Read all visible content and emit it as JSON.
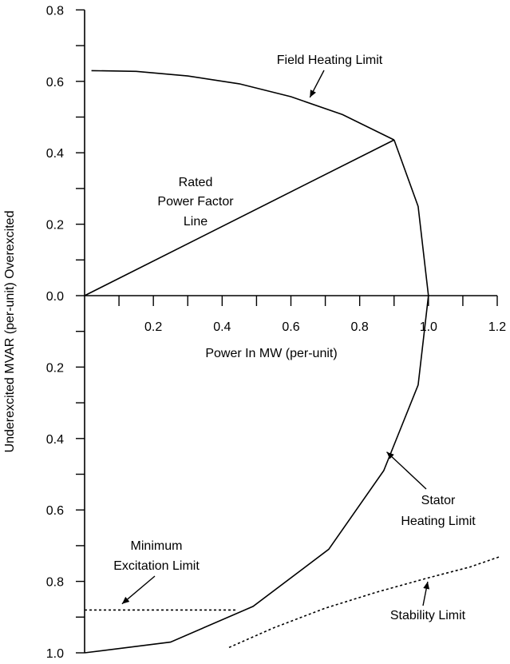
{
  "chart_data": {
    "type": "line",
    "title": "",
    "xlabel": "Power In MW (per-unit)",
    "ylabel": "Underexcited MVAR (per-unit) Overexcited",
    "xlim": [
      0,
      1.2
    ],
    "ylim": [
      -1.0,
      0.8
    ],
    "x_ticks": [
      0.2,
      0.4,
      0.6,
      0.8,
      1.0,
      1.2
    ],
    "x_tick_labels": [
      "0.2",
      "0.4",
      "0.6",
      "0.8",
      "1.0",
      "1.2"
    ],
    "y_ticks": [
      0.8,
      0.6,
      0.4,
      0.2,
      0.0,
      -0.2,
      -0.4,
      -0.6,
      -0.8,
      -1.0
    ],
    "y_tick_labels": [
      "0.8",
      "0.6",
      "0.4",
      "0.2",
      "0.0",
      "0.2",
      "0.4",
      "0.6",
      "0.8",
      "1.0"
    ],
    "grid": false,
    "series": [
      {
        "name": "Field Heating Limit",
        "style": "solid",
        "x": [
          0.02,
          0.15,
          0.3,
          0.45,
          0.6,
          0.75,
          0.9
        ],
        "y": [
          0.63,
          0.628,
          0.615,
          0.593,
          0.557,
          0.507,
          0.436
        ]
      },
      {
        "name": "Stator Heating Limit",
        "style": "solid",
        "x": [
          0.9,
          0.97,
          1.0,
          0.97,
          0.87,
          0.71,
          0.49,
          0.25,
          0.0
        ],
        "y": [
          0.436,
          0.25,
          0.0,
          -0.25,
          -0.49,
          -0.71,
          -0.87,
          -0.97,
          -1.0
        ]
      },
      {
        "name": "Rated Power Factor Line",
        "style": "solid",
        "x": [
          0.0,
          0.9
        ],
        "y": [
          0.0,
          0.436
        ]
      },
      {
        "name": "Minimum Excitation Limit",
        "style": "dashed",
        "x": [
          0.0,
          0.44
        ],
        "y": [
          -0.88,
          -0.88
        ]
      },
      {
        "name": "Stability Limit",
        "style": "dashed",
        "x": [
          0.42,
          0.55,
          0.7,
          0.85,
          1.0,
          1.12,
          1.21
        ],
        "y": [
          -0.985,
          -0.93,
          -0.875,
          -0.83,
          -0.79,
          -0.76,
          -0.73
        ]
      }
    ],
    "annotations": [
      {
        "text": "Field Heating Limit",
        "points_to": [
          0.65,
          0.545
        ]
      },
      {
        "text": "Rated",
        "points_to": null
      },
      {
        "text": "Power Factor",
        "points_to": null
      },
      {
        "text": "Line",
        "points_to": null
      },
      {
        "text": "Stator",
        "points_to": null
      },
      {
        "text": "Heating Limit",
        "points_to": [
          0.87,
          -0.43
        ]
      },
      {
        "text": "Minimum",
        "points_to": null
      },
      {
        "text": "Excitation Limit",
        "points_to": [
          0.1,
          -0.87
        ]
      },
      {
        "text": "Stability Limit",
        "points_to": [
          1.0,
          -0.79
        ]
      }
    ]
  }
}
